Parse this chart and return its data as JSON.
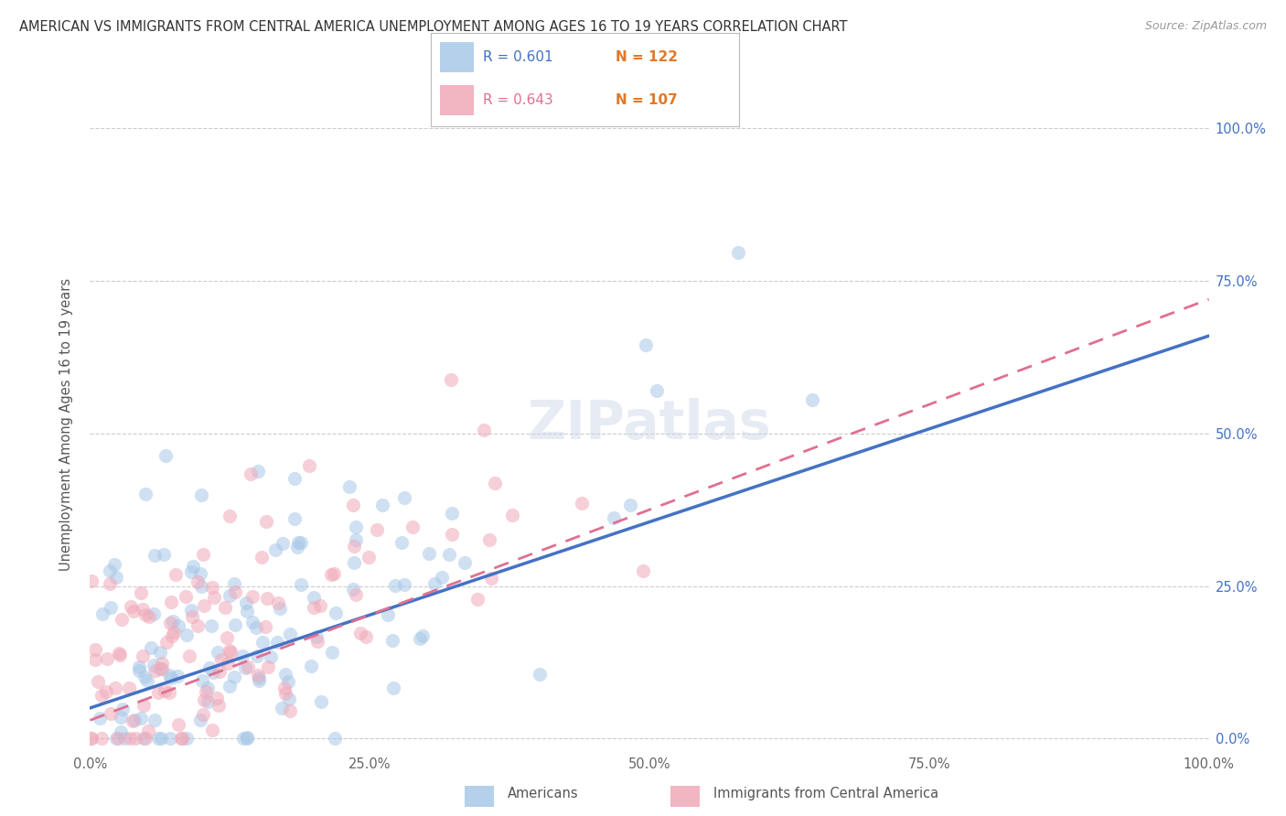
{
  "title": "AMERICAN VS IMMIGRANTS FROM CENTRAL AMERICA UNEMPLOYMENT AMONG AGES 16 TO 19 YEARS CORRELATION CHART",
  "source": "Source: ZipAtlas.com",
  "ylabel": "Unemployment Among Ages 16 to 19 years",
  "legend_blue_label": "Americans",
  "legend_pink_label": "Immigrants from Central America",
  "blue_color": "#a8c8e8",
  "pink_color": "#f0a8b8",
  "blue_line_color": "#4472c4",
  "pink_line_color": "#e07090",
  "pink_line_dash": [
    6,
    4
  ],
  "R_blue": 0.601,
  "N_blue": 122,
  "R_pink": 0.643,
  "N_pink": 107,
  "ytick_labels": [
    "0.0%",
    "25.0%",
    "50.0%",
    "75.0%",
    "100.0%"
  ],
  "ytick_values": [
    0.0,
    0.25,
    0.5,
    0.75,
    1.0
  ],
  "xtick_labels": [
    "0.0%",
    "25.0%",
    "50.0%",
    "75.0%",
    "100.0%"
  ],
  "xtick_values": [
    0.0,
    0.25,
    0.5,
    0.75,
    1.0
  ],
  "grid_color": "#cccccc",
  "background_color": "#ffffff",
  "blue_line_start_y": 0.05,
  "blue_line_end_y": 0.66,
  "pink_line_start_y": 0.03,
  "pink_line_end_y": 0.72,
  "marker_size": 120,
  "marker_alpha": 0.55
}
